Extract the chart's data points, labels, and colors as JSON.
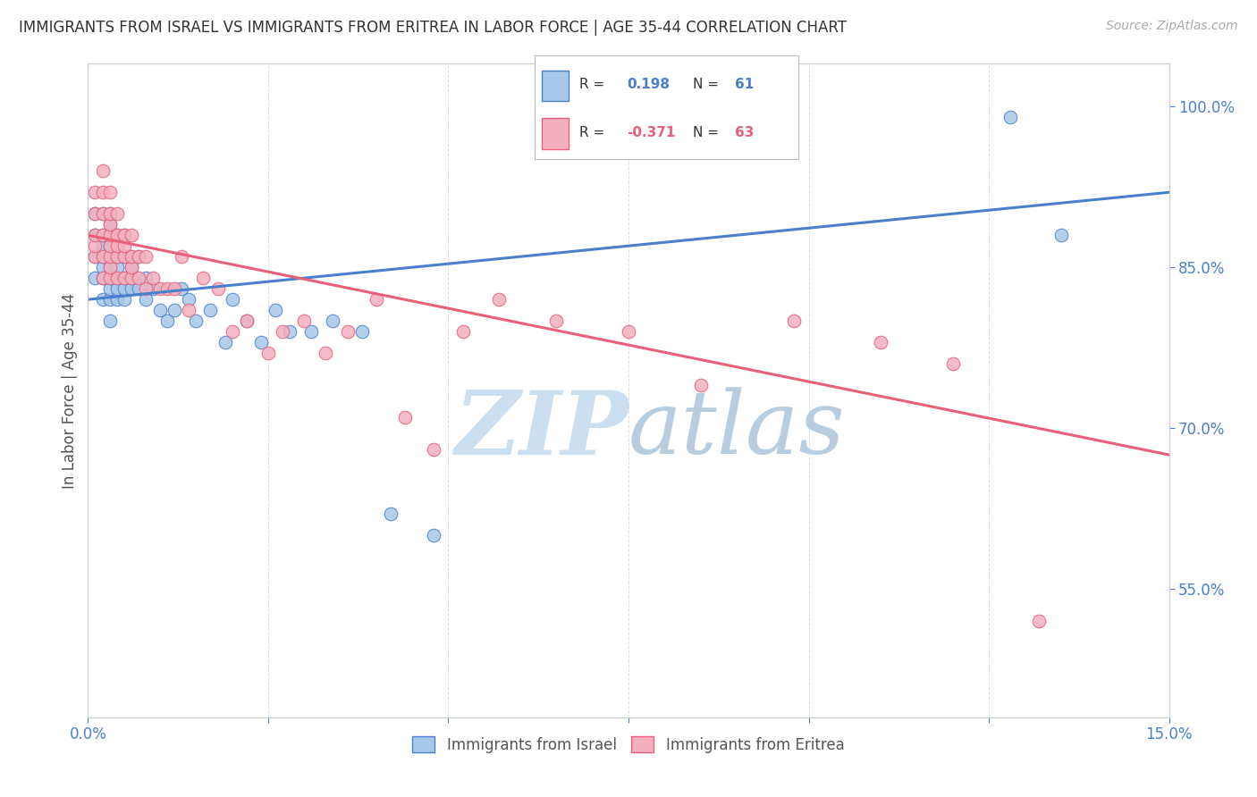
{
  "title": "IMMIGRANTS FROM ISRAEL VS IMMIGRANTS FROM ERITREA IN LABOR FORCE | AGE 35-44 CORRELATION CHART",
  "source": "Source: ZipAtlas.com",
  "ylabel": "In Labor Force | Age 35-44",
  "xlim": [
    0.0,
    0.15
  ],
  "ylim": [
    0.43,
    1.04
  ],
  "xticks": [
    0.0,
    0.025,
    0.05,
    0.075,
    0.1,
    0.125,
    0.15
  ],
  "xticklabels": [
    "0.0%",
    "",
    "",
    "",
    "",
    "",
    "15.0%"
  ],
  "right_yticks": [
    0.55,
    0.7,
    0.85,
    1.0
  ],
  "right_yticklabels": [
    "55.0%",
    "70.0%",
    "85.0%",
    "100.0%"
  ],
  "israel_color": "#a8c8e8",
  "eritrea_color": "#f5b0c0",
  "israel_line_color": "#4a7fcc",
  "eritrea_line_color": "#e8607a",
  "watermark_zip": "ZIP",
  "watermark_atlas": "atlas",
  "watermark_color": "#d8eaf8",
  "watermark_color2": "#c8d8e8",
  "background_color": "#ffffff",
  "grid_color": "#e0e0e0",
  "title_color": "#333333",
  "axis_label_color": "#555555",
  "tick_color": "#4a7fcc",
  "israel_line_y0": 0.82,
  "israel_line_y1": 0.92,
  "eritrea_line_y0": 0.88,
  "eritrea_line_y1": 0.675,
  "israel_x": [
    0.001,
    0.001,
    0.001,
    0.001,
    0.002,
    0.002,
    0.002,
    0.002,
    0.002,
    0.002,
    0.002,
    0.003,
    0.003,
    0.003,
    0.003,
    0.003,
    0.003,
    0.003,
    0.003,
    0.003,
    0.003,
    0.004,
    0.004,
    0.004,
    0.004,
    0.004,
    0.004,
    0.005,
    0.005,
    0.005,
    0.005,
    0.005,
    0.006,
    0.006,
    0.006,
    0.006,
    0.007,
    0.007,
    0.008,
    0.008,
    0.009,
    0.01,
    0.011,
    0.012,
    0.013,
    0.014,
    0.015,
    0.017,
    0.019,
    0.02,
    0.022,
    0.024,
    0.026,
    0.028,
    0.031,
    0.034,
    0.038,
    0.042,
    0.048,
    0.128,
    0.135
  ],
  "israel_y": [
    0.84,
    0.86,
    0.88,
    0.9,
    0.82,
    0.84,
    0.85,
    0.86,
    0.87,
    0.88,
    0.9,
    0.8,
    0.82,
    0.83,
    0.84,
    0.85,
    0.86,
    0.87,
    0.88,
    0.89,
    0.9,
    0.82,
    0.83,
    0.84,
    0.85,
    0.86,
    0.88,
    0.82,
    0.83,
    0.84,
    0.86,
    0.88,
    0.83,
    0.84,
    0.85,
    0.86,
    0.83,
    0.86,
    0.82,
    0.84,
    0.83,
    0.81,
    0.8,
    0.81,
    0.83,
    0.82,
    0.8,
    0.81,
    0.78,
    0.82,
    0.8,
    0.78,
    0.81,
    0.79,
    0.79,
    0.8,
    0.79,
    0.62,
    0.6,
    0.99,
    0.88
  ],
  "eritrea_x": [
    0.001,
    0.001,
    0.001,
    0.001,
    0.001,
    0.002,
    0.002,
    0.002,
    0.002,
    0.002,
    0.002,
    0.003,
    0.003,
    0.003,
    0.003,
    0.003,
    0.003,
    0.003,
    0.003,
    0.004,
    0.004,
    0.004,
    0.004,
    0.004,
    0.005,
    0.005,
    0.005,
    0.005,
    0.006,
    0.006,
    0.006,
    0.006,
    0.007,
    0.007,
    0.008,
    0.008,
    0.009,
    0.01,
    0.011,
    0.012,
    0.013,
    0.014,
    0.016,
    0.018,
    0.02,
    0.022,
    0.025,
    0.027,
    0.03,
    0.033,
    0.036,
    0.04,
    0.044,
    0.048,
    0.052,
    0.057,
    0.065,
    0.075,
    0.085,
    0.098,
    0.11,
    0.12,
    0.132
  ],
  "eritrea_y": [
    0.86,
    0.87,
    0.88,
    0.9,
    0.92,
    0.84,
    0.86,
    0.88,
    0.9,
    0.92,
    0.94,
    0.84,
    0.85,
    0.86,
    0.87,
    0.88,
    0.89,
    0.9,
    0.92,
    0.84,
    0.86,
    0.87,
    0.88,
    0.9,
    0.84,
    0.86,
    0.87,
    0.88,
    0.84,
    0.85,
    0.86,
    0.88,
    0.84,
    0.86,
    0.83,
    0.86,
    0.84,
    0.83,
    0.83,
    0.83,
    0.86,
    0.81,
    0.84,
    0.83,
    0.79,
    0.8,
    0.77,
    0.79,
    0.8,
    0.77,
    0.79,
    0.82,
    0.71,
    0.68,
    0.79,
    0.82,
    0.8,
    0.79,
    0.74,
    0.8,
    0.78,
    0.76,
    0.52
  ]
}
